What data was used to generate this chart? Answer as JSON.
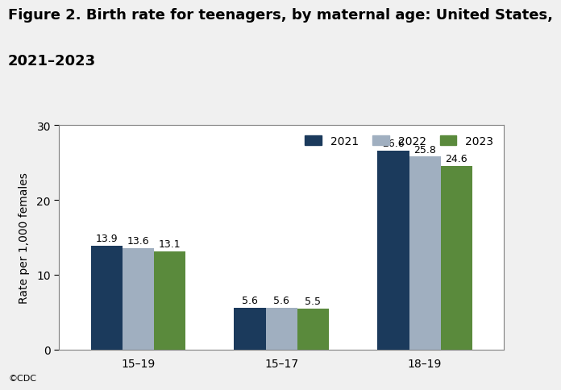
{
  "title_line1": "Figure 2. Birth rate for teenagers, by maternal age: United States,",
  "title_line2": "2021–2023",
  "categories": [
    "15–19",
    "15–17",
    "18–19"
  ],
  "years": [
    "2021",
    "2022",
    "2023"
  ],
  "values": {
    "15–19": [
      13.9,
      13.6,
      13.1
    ],
    "15–17": [
      5.6,
      5.6,
      5.5
    ],
    "18–19": [
      26.6,
      25.8,
      24.6
    ]
  },
  "colors": [
    "#1b3a5c",
    "#a0afc0",
    "#5a8a3c"
  ],
  "ylabel": "Rate per 1,000 females",
  "ylim": [
    0,
    30
  ],
  "yticks": [
    0,
    10,
    20,
    30
  ],
  "background_color": "#f0f0f0",
  "plot_bg_color": "#ffffff",
  "bar_width": 0.22,
  "watermark": "©CDC",
  "title_fontsize": 13,
  "label_fontsize": 9,
  "tick_fontsize": 10,
  "legend_fontsize": 10,
  "ylabel_fontsize": 10
}
